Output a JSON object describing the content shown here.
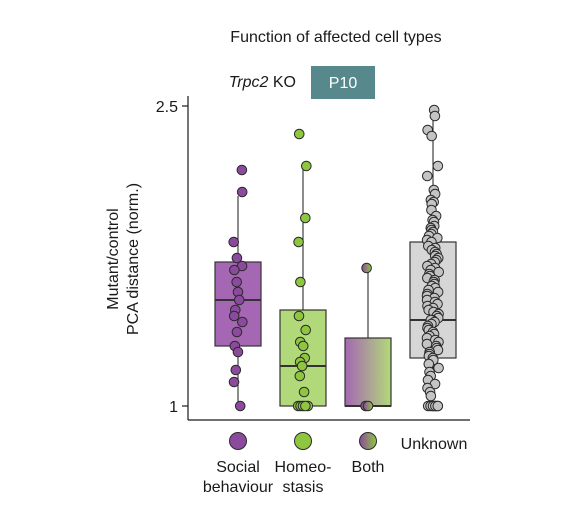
{
  "chart_data": {
    "type": "box",
    "title": "Function of affected cell types",
    "genotype_italic": "Trpc2",
    "genotype_suffix": " KO",
    "badge_label": "P10",
    "ylabel_line1": "Mutant/control",
    "ylabel_line2": "PCA distance (norm.)",
    "yticks": [
      {
        "value": 2.5,
        "label": "2.5"
      },
      {
        "value": 1.0,
        "label": "1"
      }
    ],
    "ylim": [
      0.94,
      2.56
    ],
    "colors": {
      "social": "#8c4a9e",
      "social_box": "#a567b3",
      "homeo": "#8ec63f",
      "homeo_box": "#b1d979",
      "unknown": "#c4c4c4",
      "unknown_box": "#d6d6d6",
      "badge": "#57898c"
    },
    "categories": [
      {
        "label_lines": [
          "Social",
          "behaviour"
        ],
        "color_key": "social",
        "box": {
          "whisker_low": 1.0,
          "q1": 1.3,
          "median": 1.53,
          "q3": 1.72,
          "whisker_high": 2.05
        },
        "points": [
          2.18,
          2.07,
          1.82,
          1.74,
          1.7,
          1.68,
          1.62,
          1.57,
          1.53,
          1.48,
          1.45,
          1.42,
          1.37,
          1.3,
          1.27,
          1.18,
          1.12,
          1.0
        ]
      },
      {
        "label_lines": [
          "Homeo-",
          "stasis"
        ],
        "color_key": "homeo",
        "box": {
          "whisker_low": 1.0,
          "q1": 1.0,
          "median": 1.2,
          "q3": 1.48,
          "whisker_high": 2.2
        },
        "points": [
          2.36,
          2.2,
          1.94,
          1.82,
          1.62,
          1.45,
          1.38,
          1.32,
          1.3,
          1.24,
          1.22,
          1.2,
          1.15,
          1.07,
          1.0,
          1.0,
          1.0,
          1.0,
          1.0
        ]
      },
      {
        "label_lines": [
          "Both"
        ],
        "color_key": "both",
        "box": {
          "whisker_low": 1.0,
          "q1": 1.0,
          "median": 1.0,
          "q3": 1.34,
          "whisker_high": 1.69
        },
        "points": [
          1.69,
          1.0,
          1.0
        ]
      },
      {
        "label_lines": [
          "Unknown"
        ],
        "color_key": "unknown",
        "box": {
          "whisker_low": 1.0,
          "q1": 1.24,
          "median": 1.43,
          "q3": 1.82,
          "whisker_high": 2.48
        },
        "points": [
          2.48,
          2.45,
          2.38,
          2.35,
          2.2,
          2.15,
          2.08,
          2.06,
          2.03,
          2.02,
          2.01,
          1.98,
          1.95,
          1.93,
          1.92,
          1.9,
          1.89,
          1.88,
          1.87,
          1.86,
          1.85,
          1.84,
          1.83,
          1.82,
          1.8,
          1.79,
          1.78,
          1.77,
          1.76,
          1.75,
          1.74,
          1.73,
          1.72,
          1.71,
          1.7,
          1.69,
          1.68,
          1.67,
          1.66,
          1.65,
          1.64,
          1.63,
          1.62,
          1.61,
          1.6,
          1.59,
          1.58,
          1.57,
          1.56,
          1.55,
          1.54,
          1.53,
          1.52,
          1.51,
          1.5,
          1.49,
          1.48,
          1.47,
          1.46,
          1.45,
          1.44,
          1.43,
          1.43,
          1.42,
          1.41,
          1.4,
          1.39,
          1.38,
          1.37,
          1.36,
          1.35,
          1.34,
          1.33,
          1.32,
          1.31,
          1.3,
          1.29,
          1.28,
          1.27,
          1.26,
          1.25,
          1.24,
          1.23,
          1.21,
          1.19,
          1.17,
          1.15,
          1.13,
          1.11,
          1.09,
          1.07,
          1.05,
          1.0,
          1.0,
          1.0,
          1.0,
          1.0,
          1.0,
          1.0,
          1.0
        ]
      }
    ]
  }
}
